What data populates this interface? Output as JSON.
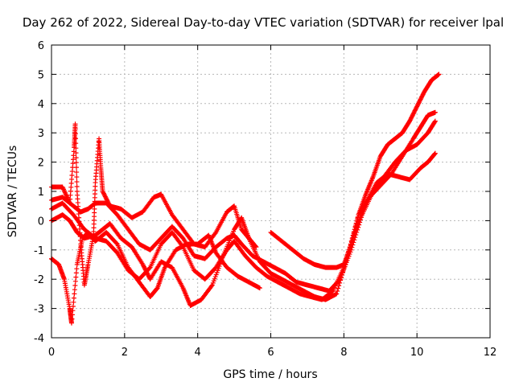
{
  "chart_data": {
    "type": "scatter",
    "title": "Day 262 of 2022, Sidereal Day-to-day VTEC variation (SDTVAR) for receiver lpal",
    "xlabel": "GPS time / hours",
    "ylabel": "SDTVAR / TECUs",
    "xlim": [
      0,
      12
    ],
    "ylim": [
      -4,
      6
    ],
    "x_ticks": [
      0,
      2,
      4,
      6,
      8,
      10,
      12
    ],
    "y_ticks": [
      -4,
      -3,
      -2,
      -1,
      0,
      1,
      2,
      3,
      4,
      5,
      6
    ],
    "grid": true,
    "marker": "+",
    "color": "#ff0000",
    "series": [
      {
        "name": "trace-1",
        "points": [
          [
            0,
            0.7
          ],
          [
            0.3,
            0.8
          ],
          [
            0.6,
            0.5
          ],
          [
            0.8,
            0.3
          ],
          [
            1.0,
            0.4
          ],
          [
            1.2,
            0.6
          ],
          [
            1.5,
            0.6
          ],
          [
            1.8,
            0.2
          ],
          [
            2.1,
            -0.3
          ],
          [
            2.4,
            -0.8
          ],
          [
            2.7,
            -1.0
          ],
          [
            3.0,
            -0.6
          ],
          [
            3.3,
            -0.2
          ],
          [
            3.6,
            -0.6
          ],
          [
            3.9,
            -1.2
          ],
          [
            4.2,
            -1.3
          ],
          [
            4.5,
            -0.9
          ],
          [
            4.8,
            -0.6
          ],
          [
            5.0,
            -0.5
          ],
          [
            5.2,
            -0.8
          ],
          [
            5.5,
            -1.2
          ],
          [
            5.8,
            -1.4
          ],
          [
            6.1,
            -1.6
          ],
          [
            6.4,
            -1.8
          ],
          [
            6.7,
            -2.1
          ],
          [
            7.0,
            -2.2
          ],
          [
            7.3,
            -2.3
          ],
          [
            7.6,
            -2.4
          ],
          [
            7.9,
            -2.0
          ],
          [
            8.2,
            -1.0
          ],
          [
            8.5,
            0.2
          ],
          [
            8.8,
            1.0
          ],
          [
            9.1,
            1.5
          ],
          [
            9.4,
            2.0
          ],
          [
            9.7,
            2.4
          ],
          [
            10.0,
            2.6
          ],
          [
            10.3,
            3.0
          ],
          [
            10.5,
            3.4
          ]
        ]
      },
      {
        "name": "trace-2",
        "points": [
          [
            0,
            0.4
          ],
          [
            0.3,
            0.6
          ],
          [
            0.6,
            0.2
          ],
          [
            0.9,
            -0.3
          ],
          [
            1.2,
            -0.6
          ],
          [
            1.5,
            -0.7
          ],
          [
            1.8,
            -1.1
          ],
          [
            2.1,
            -1.7
          ],
          [
            2.4,
            -2.0
          ],
          [
            2.7,
            -1.6
          ],
          [
            3.0,
            -0.8
          ],
          [
            3.3,
            -0.4
          ],
          [
            3.6,
            -0.9
          ],
          [
            3.9,
            -1.7
          ],
          [
            4.2,
            -2.0
          ],
          [
            4.5,
            -1.6
          ],
          [
            4.8,
            -1.0
          ],
          [
            5.0,
            -0.7
          ],
          [
            5.3,
            -1.2
          ],
          [
            5.6,
            -1.6
          ],
          [
            5.9,
            -1.9
          ],
          [
            6.2,
            -2.1
          ],
          [
            6.5,
            -2.3
          ],
          [
            6.8,
            -2.5
          ],
          [
            7.1,
            -2.6
          ],
          [
            7.4,
            -2.7
          ],
          [
            7.7,
            -2.4
          ],
          [
            8.0,
            -1.6
          ],
          [
            8.3,
            -0.4
          ],
          [
            8.6,
            0.6
          ],
          [
            8.9,
            1.3
          ],
          [
            9.2,
            1.6
          ],
          [
            9.5,
            1.5
          ],
          [
            9.8,
            1.4
          ],
          [
            10.1,
            1.8
          ],
          [
            10.3,
            2.0
          ],
          [
            10.5,
            2.3
          ]
        ]
      },
      {
        "name": "trace-3",
        "points": [
          [
            0,
            0.0
          ],
          [
            0.3,
            0.2
          ],
          [
            0.5,
            0.0
          ],
          [
            0.7,
            -0.4
          ],
          [
            0.9,
            -0.6
          ],
          [
            1.2,
            -0.5
          ],
          [
            1.4,
            -0.3
          ],
          [
            1.6,
            -0.1
          ],
          [
            1.9,
            -0.6
          ],
          [
            2.2,
            -0.9
          ],
          [
            2.5,
            -1.5
          ],
          [
            2.7,
            -2.0
          ],
          [
            3.0,
            -1.4
          ],
          [
            3.3,
            -1.6
          ],
          [
            3.6,
            -2.3
          ],
          [
            3.8,
            -2.9
          ],
          [
            4.1,
            -2.7
          ],
          [
            4.4,
            -2.2
          ],
          [
            4.7,
            -1.2
          ],
          [
            5.0,
            -0.3
          ],
          [
            5.2,
            0.1
          ],
          [
            5.4,
            -0.6
          ],
          [
            5.7,
            -1.4
          ],
          [
            6.0,
            -1.8
          ],
          [
            6.3,
            -2.0
          ],
          [
            6.6,
            -2.2
          ],
          [
            6.9,
            -2.4
          ],
          [
            7.2,
            -2.6
          ],
          [
            7.5,
            -2.7
          ],
          [
            7.8,
            -2.5
          ],
          [
            8.1,
            -1.2
          ],
          [
            8.4,
            0.2
          ],
          [
            8.7,
            0.8
          ],
          [
            9.0,
            1.2
          ],
          [
            9.3,
            1.6
          ],
          [
            9.6,
            2.2
          ],
          [
            9.9,
            2.8
          ],
          [
            10.1,
            3.2
          ],
          [
            10.3,
            3.6
          ],
          [
            10.5,
            3.7
          ]
        ]
      },
      {
        "name": "trace-4",
        "points": [
          [
            0,
            -1.3
          ],
          [
            0.2,
            -1.5
          ],
          [
            0.35,
            -2.0
          ],
          [
            0.5,
            -3.0
          ],
          [
            0.55,
            -3.5
          ],
          [
            0.7,
            -1.5
          ],
          [
            0.85,
            -0.6
          ],
          [
            1.0,
            -0.4
          ],
          [
            1.2,
            -0.7
          ],
          [
            1.5,
            -0.4
          ],
          [
            1.8,
            -0.8
          ],
          [
            2.1,
            -1.6
          ],
          [
            2.4,
            -2.1
          ],
          [
            2.7,
            -2.6
          ],
          [
            2.9,
            -2.3
          ],
          [
            3.1,
            -1.6
          ],
          [
            3.4,
            -1.0
          ],
          [
            3.7,
            -0.8
          ],
          [
            4.0,
            -0.8
          ],
          [
            4.3,
            -0.5
          ],
          [
            4.5,
            -1.1
          ],
          [
            4.8,
            -1.6
          ],
          [
            5.1,
            -1.9
          ],
          [
            5.4,
            -2.1
          ],
          [
            5.7,
            -2.3
          ]
        ]
      },
      {
        "name": "trace-5",
        "points": [
          [
            0,
            1.15
          ],
          [
            0.3,
            1.15
          ],
          [
            0.5,
            0.6
          ],
          [
            0.62,
            2.5
          ],
          [
            0.65,
            3.3
          ],
          [
            0.7,
            1.0
          ],
          [
            0.8,
            -0.8
          ],
          [
            0.9,
            -2.2
          ],
          [
            1.0,
            -1.5
          ],
          [
            1.15,
            -0.5
          ],
          [
            1.2,
            1.3
          ],
          [
            1.3,
            2.8
          ],
          [
            1.35,
            1.8
          ],
          [
            1.4,
            1.0
          ],
          [
            1.6,
            0.5
          ],
          [
            1.9,
            0.4
          ],
          [
            2.2,
            0.1
          ],
          [
            2.5,
            0.3
          ],
          [
            2.8,
            0.8
          ],
          [
            3.0,
            0.9
          ],
          [
            3.3,
            0.2
          ],
          [
            3.6,
            -0.3
          ],
          [
            3.9,
            -0.8
          ],
          [
            4.2,
            -0.9
          ],
          [
            4.5,
            -0.4
          ],
          [
            4.8,
            0.3
          ],
          [
            5.0,
            0.5
          ],
          [
            5.2,
            -0.3
          ],
          [
            5.4,
            -0.6
          ],
          [
            5.6,
            -0.9
          ]
        ]
      },
      {
        "name": "trace-6",
        "points": [
          [
            6.0,
            -0.4
          ],
          [
            6.3,
            -0.7
          ],
          [
            6.6,
            -1.0
          ],
          [
            6.9,
            -1.3
          ],
          [
            7.2,
            -1.5
          ],
          [
            7.5,
            -1.6
          ],
          [
            7.8,
            -1.6
          ],
          [
            8.0,
            -1.5
          ],
          [
            8.2,
            -0.8
          ],
          [
            8.4,
            0.2
          ],
          [
            8.6,
            0.9
          ],
          [
            8.8,
            1.5
          ],
          [
            9.0,
            2.2
          ],
          [
            9.2,
            2.6
          ],
          [
            9.4,
            2.8
          ],
          [
            9.6,
            3.0
          ],
          [
            9.8,
            3.4
          ],
          [
            10.0,
            3.9
          ],
          [
            10.2,
            4.4
          ],
          [
            10.4,
            4.8
          ],
          [
            10.6,
            5.0
          ]
        ]
      }
    ]
  }
}
